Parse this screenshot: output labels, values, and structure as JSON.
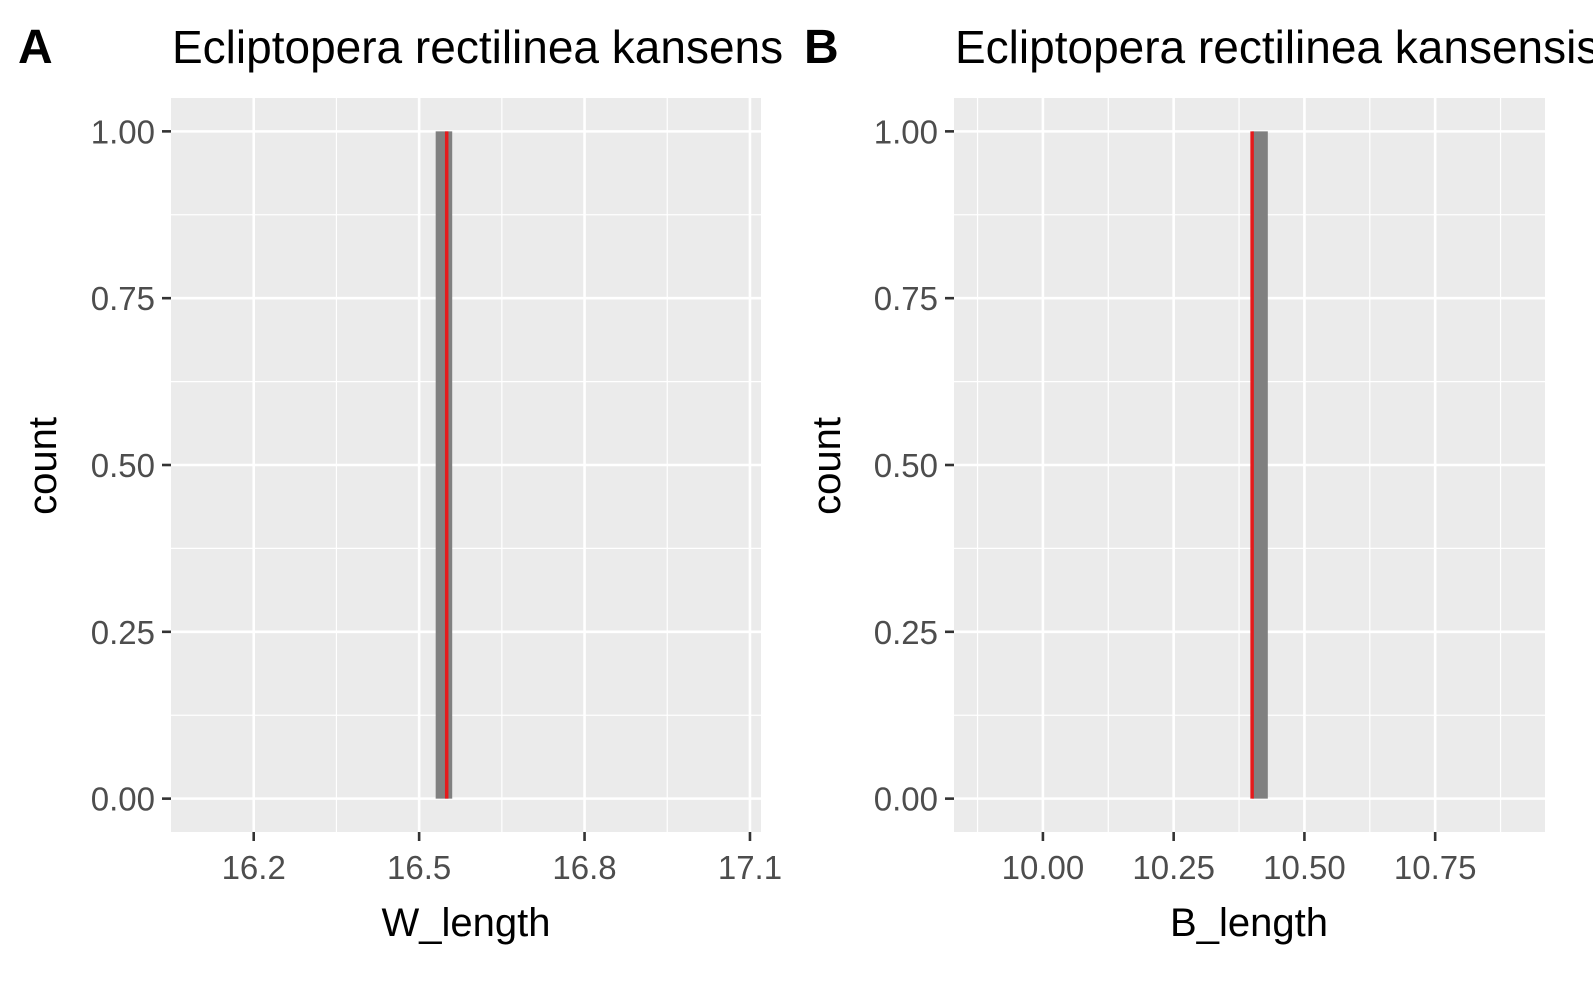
{
  "chart_data": [
    {
      "type": "bar",
      "tag": "A",
      "title": "Ecliptopera rectilinea kansensis",
      "xlabel": "W_length",
      "ylabel": "count",
      "xlim": [
        16.05,
        17.12
      ],
      "ylim": [
        -0.05,
        1.05
      ],
      "x_ticks": [
        16.2,
        16.5,
        16.8,
        17.1
      ],
      "x_tick_labels": [
        "16.2",
        "16.5",
        "16.8",
        "17.1"
      ],
      "y_ticks": [
        0,
        0.25,
        0.5,
        0.75,
        1
      ],
      "y_tick_labels": [
        "0.00",
        "0.25",
        "0.50",
        "0.75",
        "1.00"
      ],
      "bars": [
        {
          "xmin": 16.53,
          "xmax": 16.56,
          "count": 1
        }
      ],
      "vline": 16.55,
      "grid": true,
      "colors": {
        "panel": "#ebebeb",
        "grid": "#ffffff",
        "bar": "#808080",
        "vline": "#e41a1c"
      }
    },
    {
      "type": "bar",
      "tag": "B",
      "title": "Ecliptopera rectilinea kansensis",
      "xlabel": "B_length",
      "ylabel": "count",
      "xlim": [
        9.83,
        10.96
      ],
      "ylim": [
        -0.05,
        1.05
      ],
      "x_ticks": [
        10.0,
        10.25,
        10.5,
        10.75
      ],
      "x_tick_labels": [
        "10.00",
        "10.25",
        "10.50",
        "10.75"
      ],
      "y_ticks": [
        0,
        0.25,
        0.5,
        0.75,
        1
      ],
      "y_tick_labels": [
        "0.00",
        "0.25",
        "0.50",
        "0.75",
        "1.00"
      ],
      "bars": [
        {
          "xmin": 10.4,
          "xmax": 10.43,
          "count": 1
        }
      ],
      "vline": 10.4,
      "grid": true,
      "colors": {
        "panel": "#ebebeb",
        "grid": "#ffffff",
        "bar": "#808080",
        "vline": "#e41a1c"
      }
    }
  ]
}
